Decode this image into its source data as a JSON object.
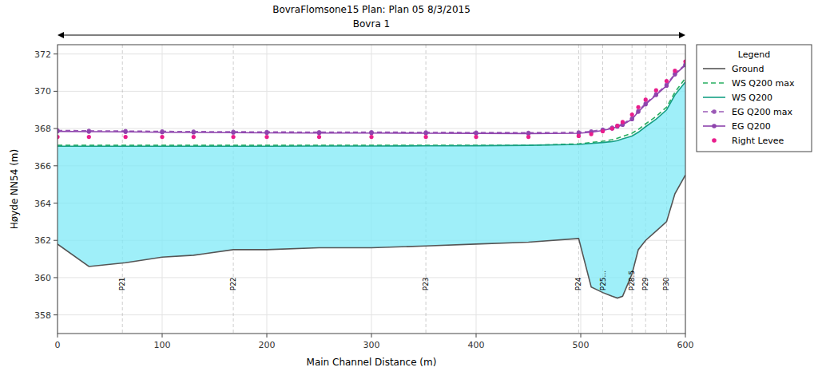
{
  "chart_data": {
    "type": "line",
    "title": "BovraFlomsone15    Plan: Plan 05   8/3/2015",
    "subtitle": "Bovra 1",
    "x_label": "Main Channel Distance (m)",
    "y_label": "Høyde NN54 (m)",
    "xlim": [
      0,
      600
    ],
    "ylim": [
      357,
      372.5
    ],
    "xticks": [
      0,
      100,
      200,
      300,
      400,
      500,
      600
    ],
    "yticks": [
      358,
      360,
      362,
      364,
      366,
      368,
      370,
      372
    ],
    "grid": true,
    "legend": "upper right",
    "legend_title": "Legend",
    "x": [
      0,
      30,
      65,
      100,
      130,
      168,
      200,
      250,
      300,
      352,
      400,
      450,
      498,
      510,
      521,
      530,
      535,
      540,
      549,
      555,
      562,
      572,
      582,
      590,
      600
    ],
    "series": [
      {
        "name": "Ground",
        "color": "#555555",
        "line_style": "solid",
        "values": [
          361.8,
          360.6,
          360.8,
          361.1,
          361.2,
          361.5,
          361.5,
          361.6,
          361.6,
          361.7,
          361.8,
          361.9,
          362.1,
          359.5,
          359.2,
          359.0,
          358.9,
          359.0,
          360.2,
          361.5,
          362.0,
          362.5,
          363.0,
          364.5,
          365.5
        ]
      },
      {
        "name": "WS Q200 max",
        "color": "#27ae60",
        "line_style": "dashed",
        "values": [
          367.1,
          367.1,
          367.1,
          367.1,
          367.1,
          367.1,
          367.1,
          367.1,
          367.1,
          367.1,
          367.1,
          367.1,
          367.18,
          367.25,
          367.32,
          367.4,
          367.48,
          367.58,
          367.75,
          367.95,
          368.25,
          368.65,
          369.15,
          369.95,
          370.7
        ]
      },
      {
        "name": "WS Q200",
        "color": "#16a085",
        "line_style": "solid",
        "values": [
          367.05,
          367.05,
          367.05,
          367.05,
          367.05,
          367.05,
          367.05,
          367.06,
          367.06,
          367.07,
          367.08,
          367.1,
          367.15,
          367.2,
          367.25,
          367.3,
          367.35,
          367.45,
          367.6,
          367.8,
          368.1,
          368.5,
          369.0,
          369.8,
          370.5
        ]
      },
      {
        "name": "EG Q200 max",
        "color": "#9b59b6",
        "line_style": "dashed",
        "marker": "circle",
        "values": [
          367.9,
          367.88,
          367.87,
          367.85,
          367.84,
          367.83,
          367.82,
          367.81,
          367.81,
          367.8,
          367.79,
          367.78,
          367.8,
          367.85,
          367.95,
          368.05,
          368.15,
          368.25,
          368.55,
          368.95,
          369.35,
          369.85,
          370.35,
          370.95,
          371.45
        ]
      },
      {
        "name": "EG Q200",
        "color": "#8e44ad",
        "line_style": "solid",
        "marker": "circle",
        "values": [
          367.85,
          367.83,
          367.82,
          367.8,
          367.79,
          367.78,
          367.77,
          367.76,
          367.76,
          367.75,
          367.74,
          367.73,
          367.75,
          367.8,
          367.9,
          368.0,
          368.1,
          368.2,
          368.5,
          368.9,
          369.3,
          369.8,
          370.3,
          370.9,
          371.4
        ]
      },
      {
        "name": "Right Levee",
        "color": "#e91e8c",
        "line_style": "none",
        "marker": "circle",
        "values": [
          367.55,
          367.55,
          367.55,
          367.55,
          367.55,
          367.55,
          367.55,
          367.55,
          367.55,
          367.55,
          367.55,
          367.55,
          367.6,
          367.7,
          367.85,
          368.0,
          368.15,
          368.35,
          368.75,
          369.15,
          369.55,
          370.05,
          370.55,
          371.1,
          371.6
        ]
      }
    ],
    "annotations": [
      {
        "text": "P21",
        "x": 62,
        "y": 359.3
      },
      {
        "text": "P22",
        "x": 168,
        "y": 359.3
      },
      {
        "text": "P23",
        "x": 352,
        "y": 359.3
      },
      {
        "text": "P24",
        "x": 498,
        "y": 359.3
      },
      {
        "text": "P25...",
        "x": 521,
        "y": 359.3
      },
      {
        "text": "P28.5",
        "x": 549,
        "y": 359.3
      },
      {
        "text": "P29",
        "x": 562,
        "y": 359.3
      },
      {
        "text": "P30",
        "x": 582,
        "y": 359.3
      }
    ]
  }
}
